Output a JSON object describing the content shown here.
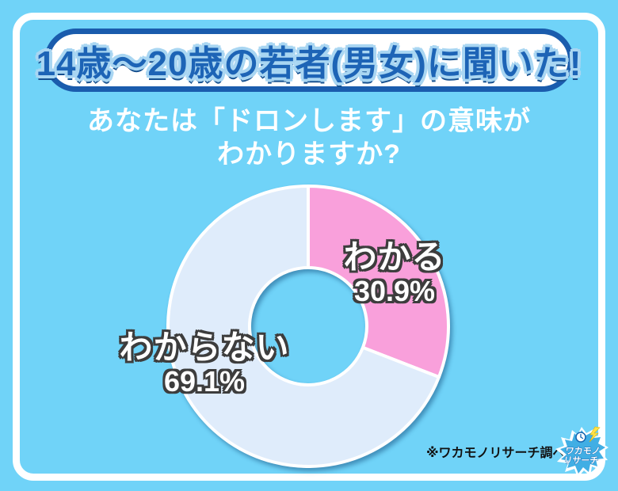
{
  "theme": {
    "background_color": "#70D3F8",
    "frame_color": "#FFFFFF",
    "banner_border_color": "#1A5CAD",
    "banner_text_color": "#1D64B6",
    "banner_text_outline_color": "#A9D6F2",
    "label_outline_color": "#3D3D3D",
    "footnote_color": "#111111"
  },
  "banner": {
    "title": "14歳〜20歳の若者(男女)に聞いた!"
  },
  "question": {
    "line1": "あなたは「ドロンします」の意味が",
    "line2": "わかりますか?"
  },
  "chart_data": {
    "type": "pie",
    "subtype": "donut",
    "title": "あなたは「ドロンします」の意味がわかりますか?",
    "labels": [
      "わかる",
      "わからない"
    ],
    "values": [
      30.9,
      69.1
    ],
    "value_labels": [
      "30.9%",
      "69.1%"
    ],
    "unit": "%",
    "colors": [
      "#F9A0DB",
      "#DFECFB"
    ],
    "start_angle_deg": 0,
    "direction": "clockwise",
    "donut_hole_ratio": 0.42,
    "segment_stroke": "#FFFFFF",
    "legend_position": "on-slice-labels"
  },
  "footnote": {
    "text": "※ワカモノリサーチ調べ"
  },
  "logo": {
    "line1": "ワカモノ",
    "line2": "リサーチ",
    "badge_color": "#41AEE4",
    "bolt_color": "#FFE24A"
  }
}
